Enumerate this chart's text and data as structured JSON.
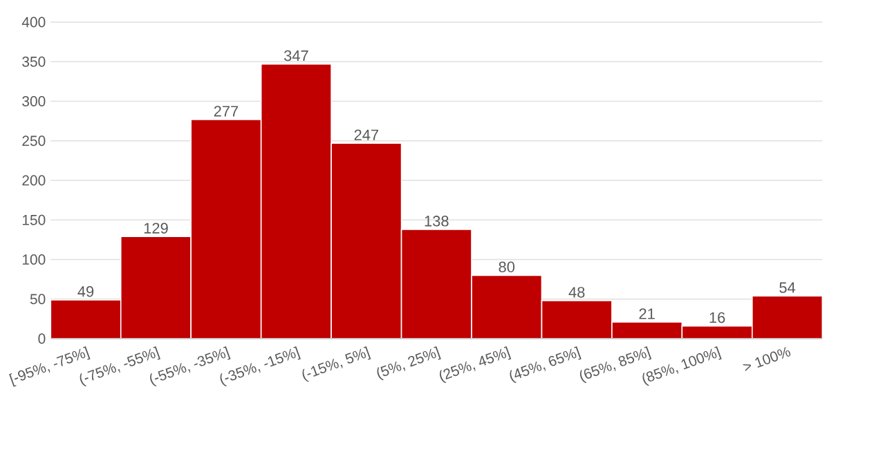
{
  "chart_data": {
    "type": "bar",
    "categories": [
      "[-95%, -75%]",
      "(-75%, -55%]",
      "(-55%, -35%]",
      "(-35%, -15%]",
      "(-15%, 5%]",
      "(5%, 25%]",
      "(25%, 45%]",
      "(45%, 65%]",
      "(65%, 85%]",
      "(85%, 100%]",
      "> 100%"
    ],
    "values": [
      49,
      129,
      277,
      347,
      247,
      138,
      80,
      48,
      21,
      16,
      54
    ],
    "color": "#c00000",
    "ylim": [
      0,
      400
    ],
    "yticks": [
      0,
      50,
      100,
      150,
      200,
      250,
      300,
      350,
      400
    ],
    "grid": "y",
    "data_labels": true
  }
}
